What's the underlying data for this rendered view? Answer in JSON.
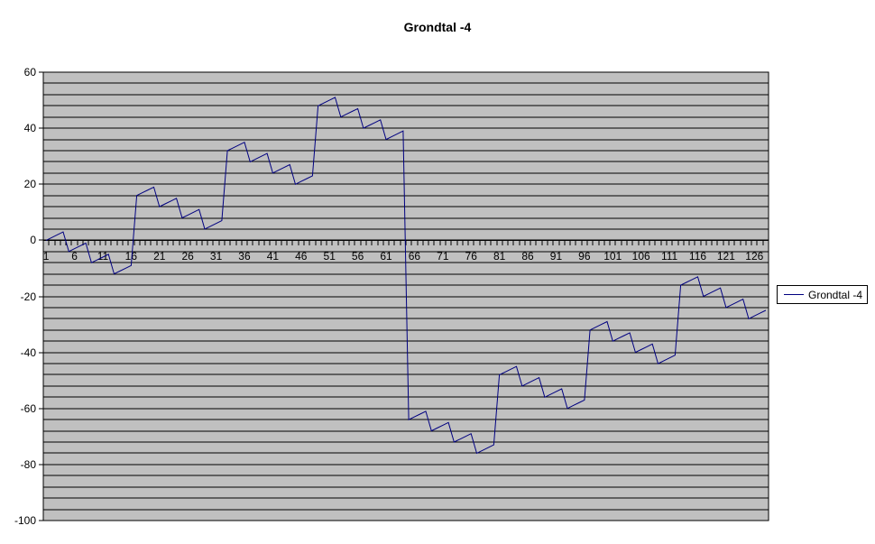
{
  "title": "Grondtal -4",
  "legend": {
    "label": "Grondtal -4"
  },
  "colors": {
    "background": "#FFFFFF",
    "plot_background": "#C0C0C0",
    "gridline": "#000000",
    "axis": "#000000",
    "text": "#000000",
    "series_line": "#000080",
    "legend_background": "#FFFFFF",
    "legend_border": "#000000"
  },
  "chart_data": {
    "type": "line",
    "title": "Grondtal -4",
    "xlabel": "",
    "ylabel": "",
    "ylim": [
      -100,
      60
    ],
    "y_major_unit": 20,
    "y_minor_unit": 4,
    "grid": "horizontal-minor",
    "legend_position": "right",
    "y_tick_labels": [
      60,
      40,
      20,
      0,
      -20,
      -40,
      -60,
      -80,
      -100
    ],
    "x_tick_labels": [
      1,
      6,
      11,
      16,
      21,
      26,
      31,
      36,
      41,
      46,
      51,
      56,
      61,
      66,
      71,
      76,
      81,
      86,
      91,
      96,
      101,
      106,
      111,
      116,
      121,
      126
    ],
    "x_label_step": 5,
    "series": [
      {
        "name": "Grondtal -4",
        "color": "#000080",
        "values": [
          0,
          1,
          2,
          3,
          -4,
          -3,
          -2,
          -1,
          -8,
          -7,
          -6,
          -5,
          -12,
          -11,
          -10,
          -9,
          16,
          17,
          18,
          19,
          12,
          13,
          14,
          15,
          8,
          9,
          10,
          11,
          4,
          5,
          6,
          7,
          32,
          33,
          34,
          35,
          28,
          29,
          30,
          31,
          24,
          25,
          26,
          27,
          20,
          21,
          22,
          23,
          48,
          49,
          50,
          51,
          44,
          45,
          46,
          47,
          40,
          41,
          42,
          43,
          36,
          37,
          38,
          39,
          -64,
          -63,
          -62,
          -61,
          -68,
          -67,
          -66,
          -65,
          -72,
          -71,
          -70,
          -69,
          -76,
          -75,
          -74,
          -73,
          -48,
          -47,
          -46,
          -45,
          -52,
          -51,
          -50,
          -49,
          -56,
          -55,
          -54,
          -53,
          -60,
          -59,
          -58,
          -57,
          -32,
          -31,
          -30,
          -29,
          -36,
          -35,
          -34,
          -33,
          -40,
          -39,
          -38,
          -37,
          -44,
          -43,
          -42,
          -41,
          -16,
          -15,
          -14,
          -13,
          -20,
          -19,
          -18,
          -17,
          -24,
          -23,
          -22,
          -21,
          -28,
          -27,
          -26,
          -25
        ]
      }
    ]
  }
}
